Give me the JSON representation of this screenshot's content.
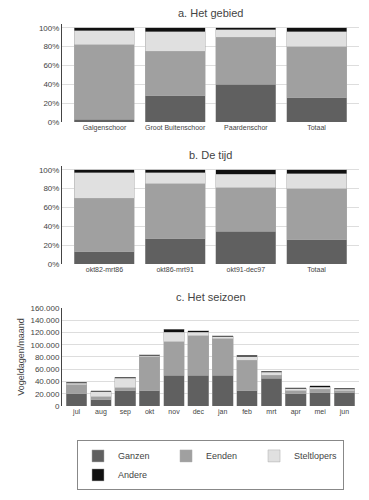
{
  "chart_data": [
    {
      "type": "bar",
      "title": "a. Het gebied",
      "stacked": true,
      "grid": true,
      "categories": [
        "Galgenschoor",
        "Groot Buitenschoor",
        "Paardenschor",
        "Totaal"
      ],
      "series": [
        {
          "name": "Ganzen",
          "color": "#606060",
          "values": [
            0.03,
            0.28,
            0.4,
            0.26
          ]
        },
        {
          "name": "Eenden",
          "color": "#a0a0a0",
          "values": [
            0.79,
            0.47,
            0.5,
            0.54
          ]
        },
        {
          "name": "Steltlopers",
          "color": "#e0e0e0",
          "values": [
            0.15,
            0.21,
            0.08,
            0.16
          ]
        },
        {
          "name": "Andere",
          "color": "#101010",
          "values": [
            0.03,
            0.04,
            0.02,
            0.04
          ]
        }
      ],
      "ylim": [
        0,
        1.04
      ],
      "yticks": [
        {
          "value": 0,
          "label": "0%"
        },
        {
          "value": 0.2,
          "label": "20%"
        },
        {
          "value": 0.4,
          "label": "40%"
        },
        {
          "value": 0.6,
          "label": "60%"
        },
        {
          "value": 0.8,
          "label": "80%"
        },
        {
          "value": 1.0,
          "label": "100%"
        }
      ]
    },
    {
      "type": "bar",
      "title": "b. De tijd",
      "stacked": true,
      "grid": true,
      "categories": [
        "okt82-mrt86",
        "okt86-mrt91",
        "okt91-dec97",
        "Totaal"
      ],
      "series": [
        {
          "name": "Ganzen",
          "color": "#606060",
          "values": [
            0.13,
            0.27,
            0.35,
            0.26
          ]
        },
        {
          "name": "Eenden",
          "color": "#a0a0a0",
          "values": [
            0.57,
            0.58,
            0.46,
            0.54
          ]
        },
        {
          "name": "Steltlopers",
          "color": "#e0e0e0",
          "values": [
            0.27,
            0.12,
            0.14,
            0.16
          ]
        },
        {
          "name": "Andere",
          "color": "#101010",
          "values": [
            0.03,
            0.03,
            0.05,
            0.04
          ]
        }
      ],
      "ylim": [
        0,
        1.04
      ],
      "yticks": [
        {
          "value": 0,
          "label": "0%"
        },
        {
          "value": 0.2,
          "label": "20%"
        },
        {
          "value": 0.4,
          "label": "40%"
        },
        {
          "value": 0.6,
          "label": "60%"
        },
        {
          "value": 0.8,
          "label": "80%"
        },
        {
          "value": 1.0,
          "label": "100%"
        }
      ]
    },
    {
      "type": "bar",
      "title": "c. Het seizoen",
      "ylabel": "Vogeldagen/maand",
      "stacked": true,
      "grid": true,
      "legend": "bottom",
      "categories": [
        "jul",
        "aug",
        "sep",
        "okt",
        "nov",
        "dec",
        "jan",
        "feb",
        "mrt",
        "apr",
        "mei",
        "jun"
      ],
      "series": [
        {
          "name": "Ganzen",
          "color": "#606060",
          "values": [
            20000,
            10000,
            25000,
            25000,
            50000,
            50000,
            50000,
            25000,
            45000,
            20000,
            22000,
            22000
          ]
        },
        {
          "name": "Eenden",
          "color": "#a0a0a0",
          "values": [
            15000,
            5000,
            5000,
            55000,
            55000,
            65000,
            60000,
            50000,
            5000,
            5000,
            5000,
            3000
          ]
        },
        {
          "name": "Steltlopers",
          "color": "#e0e0e0",
          "values": [
            2000,
            8000,
            15000,
            2000,
            15000,
            5000,
            3000,
            5000,
            5000,
            3000,
            4000,
            2000
          ]
        },
        {
          "name": "Andere",
          "color": "#101010",
          "values": [
            2000,
            2000,
            2000,
            2000,
            5000,
            3000,
            2000,
            3000,
            2000,
            2000,
            2000,
            2000
          ]
        }
      ],
      "ylim": [
        0,
        160000
      ],
      "yticks": [
        0,
        {
          "value": 20000,
          "label": "20.000"
        },
        {
          "value": 40000,
          "label": "40.000"
        },
        {
          "value": 60000,
          "label": "60.000"
        },
        {
          "value": 80000,
          "label": "80.000"
        },
        {
          "value": 100000,
          "label": "100.000"
        },
        {
          "value": 120000,
          "label": "120.000"
        },
        {
          "value": 140000,
          "label": "140.000"
        },
        {
          "value": 160000,
          "label": "160.000"
        }
      ]
    }
  ]
}
